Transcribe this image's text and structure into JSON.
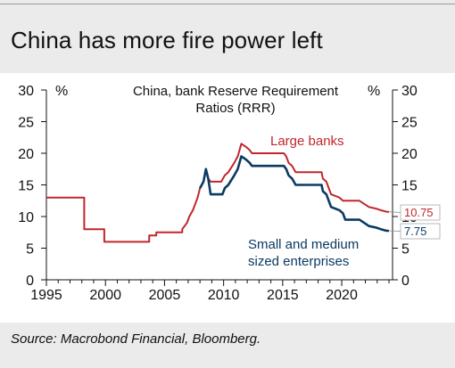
{
  "title": "China has more fire power left",
  "source": "Source: Macrobond Financial, Bloomberg.",
  "chart_data": {
    "type": "line",
    "title": "China, bank Reserve Requirement Ratios (RRR)",
    "title_lines": [
      "China, bank Reserve Requirement",
      "Ratios (RRR)"
    ],
    "left_unit": "%",
    "right_unit": "%",
    "xlim": [
      1995,
      2024.3
    ],
    "ylim": [
      0,
      30
    ],
    "x_ticks": [
      1995,
      2000,
      2005,
      2010,
      2015,
      2020
    ],
    "y_ticks": [
      0,
      5,
      10,
      15,
      20,
      25,
      30
    ],
    "grid": false,
    "series": [
      {
        "name": "Large banks",
        "color": "#c0272d",
        "end_label": "10.75",
        "points": [
          [
            1995,
            13
          ],
          [
            1998.2,
            13
          ],
          [
            1998.2,
            8
          ],
          [
            1999.9,
            8
          ],
          [
            1999.9,
            6
          ],
          [
            2003.7,
            6
          ],
          [
            2003.7,
            7
          ],
          [
            2004.3,
            7
          ],
          [
            2004.3,
            7.5
          ],
          [
            2006.5,
            7.5
          ],
          [
            2006.5,
            8
          ],
          [
            2006.7,
            8.5
          ],
          [
            2006.9,
            9
          ],
          [
            2007.1,
            10
          ],
          [
            2007.4,
            11
          ],
          [
            2007.6,
            12
          ],
          [
            2007.8,
            13
          ],
          [
            2008.0,
            14.5
          ],
          [
            2008.3,
            15.5
          ],
          [
            2008.5,
            17.5
          ],
          [
            2008.7,
            16
          ],
          [
            2008.9,
            15.5
          ],
          [
            2009.8,
            15.5
          ],
          [
            2010.1,
            16.5
          ],
          [
            2010.4,
            17
          ],
          [
            2010.9,
            18.5
          ],
          [
            2011.2,
            19.5
          ],
          [
            2011.5,
            21.5
          ],
          [
            2011.9,
            21
          ],
          [
            2012.2,
            20.5
          ],
          [
            2012.4,
            20
          ],
          [
            2015.1,
            20
          ],
          [
            2015.3,
            19.5
          ],
          [
            2015.5,
            18.5
          ],
          [
            2015.8,
            18
          ],
          [
            2016.1,
            17
          ],
          [
            2018.3,
            17
          ],
          [
            2018.4,
            16
          ],
          [
            2018.7,
            15.5
          ],
          [
            2018.9,
            14.5
          ],
          [
            2019.1,
            13.5
          ],
          [
            2019.8,
            13
          ],
          [
            2020.1,
            12.5
          ],
          [
            2021.5,
            12.5
          ],
          [
            2021.9,
            12
          ],
          [
            2022.3,
            11.5
          ],
          [
            2022.9,
            11.25
          ],
          [
            2023.3,
            11
          ],
          [
            2023.8,
            10.75
          ],
          [
            2024.0,
            10.75
          ]
        ]
      },
      {
        "name": "Small and medium sized enterprises",
        "name_lines": [
          "Small and medium",
          "sized enterprises"
        ],
        "color": "#0b3a63",
        "end_label": "7.75",
        "points": [
          [
            2008.0,
            14.5
          ],
          [
            2008.3,
            15.5
          ],
          [
            2008.5,
            17.5
          ],
          [
            2008.7,
            16
          ],
          [
            2008.9,
            13.5
          ],
          [
            2009.9,
            13.5
          ],
          [
            2010.1,
            14.5
          ],
          [
            2010.4,
            15
          ],
          [
            2010.9,
            16.5
          ],
          [
            2011.2,
            17.5
          ],
          [
            2011.5,
            19.5
          ],
          [
            2011.9,
            19
          ],
          [
            2012.2,
            18.5
          ],
          [
            2012.4,
            18
          ],
          [
            2015.1,
            18
          ],
          [
            2015.3,
            17.5
          ],
          [
            2015.5,
            16.5
          ],
          [
            2015.8,
            16
          ],
          [
            2016.1,
            15
          ],
          [
            2018.3,
            15
          ],
          [
            2018.4,
            14
          ],
          [
            2018.7,
            13.5
          ],
          [
            2018.9,
            12.5
          ],
          [
            2019.1,
            11.5
          ],
          [
            2019.8,
            11
          ],
          [
            2020.1,
            10.5
          ],
          [
            2020.3,
            9.5
          ],
          [
            2021.5,
            9.5
          ],
          [
            2021.9,
            9
          ],
          [
            2022.3,
            8.5
          ],
          [
            2022.9,
            8.25
          ],
          [
            2023.3,
            8
          ],
          [
            2023.8,
            7.75
          ],
          [
            2024.0,
            7.75
          ]
        ]
      }
    ]
  }
}
